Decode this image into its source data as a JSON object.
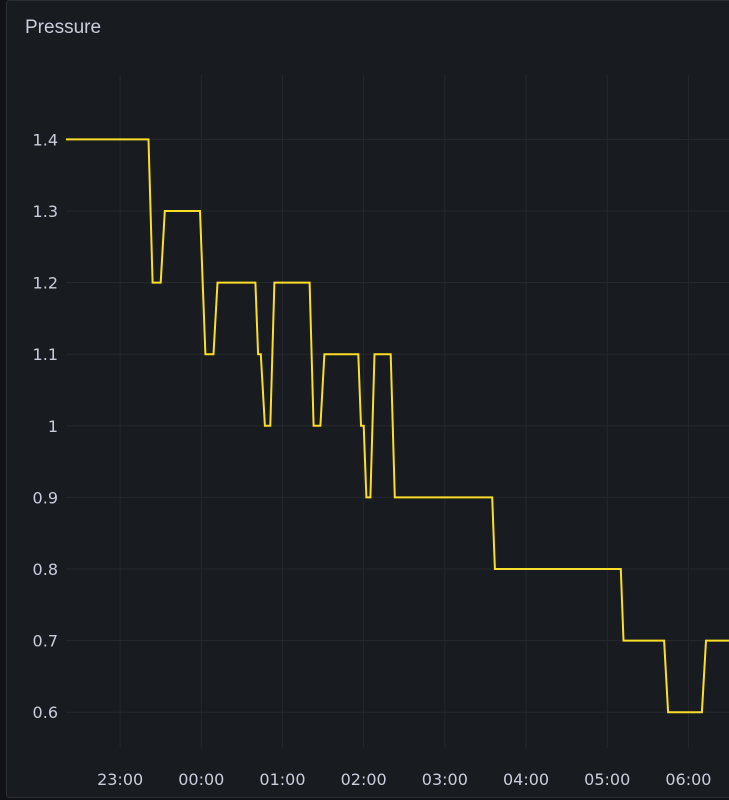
{
  "panel": {
    "title": "Pressure"
  },
  "chart_data": {
    "type": "line",
    "title": "Pressure",
    "xlabel": "",
    "ylabel": "",
    "x_ticks": [
      "23:00",
      "00:00",
      "01:00",
      "02:00",
      "03:00",
      "04:00",
      "05:00",
      "06:00"
    ],
    "y_ticks": [
      0.6,
      0.7,
      0.8,
      0.9,
      1,
      1.1,
      1.2,
      1.3,
      1.4
    ],
    "ylim": [
      0.55,
      1.49
    ],
    "xlim": [
      "22:20",
      "06:30"
    ],
    "grid": true,
    "legend": "none",
    "colors": {
      "line": "#fade2a",
      "grid": "#25282e",
      "background": "#181b1f",
      "text": "#ccccdc"
    },
    "series": [
      {
        "x": [
          "22:20",
          "23:21",
          "23:24",
          "23:30",
          "23:33",
          "23:59",
          "00:03",
          "00:09",
          "00:12",
          "00:40",
          "00:42",
          "00:44",
          "00:47",
          "00:51",
          "00:54",
          "01:20",
          "01:23",
          "01:28",
          "01:31",
          "01:56",
          "01:58",
          "02:00",
          "02:02",
          "02:05",
          "02:08",
          "02:20",
          "02:23",
          "03:35",
          "03:37",
          "05:10",
          "05:12",
          "05:42",
          "05:45",
          "06:10",
          "06:13",
          "06:30"
        ],
        "values": [
          1.4,
          1.4,
          1.2,
          1.2,
          1.3,
          1.3,
          1.1,
          1.1,
          1.2,
          1.2,
          1.1,
          1.1,
          1.0,
          1.0,
          1.2,
          1.2,
          1.0,
          1.0,
          1.1,
          1.1,
          1.0,
          1.0,
          0.9,
          0.9,
          1.1,
          1.1,
          0.9,
          0.9,
          0.8,
          0.8,
          0.7,
          0.7,
          0.6,
          0.6,
          0.7,
          0.7
        ]
      }
    ]
  }
}
